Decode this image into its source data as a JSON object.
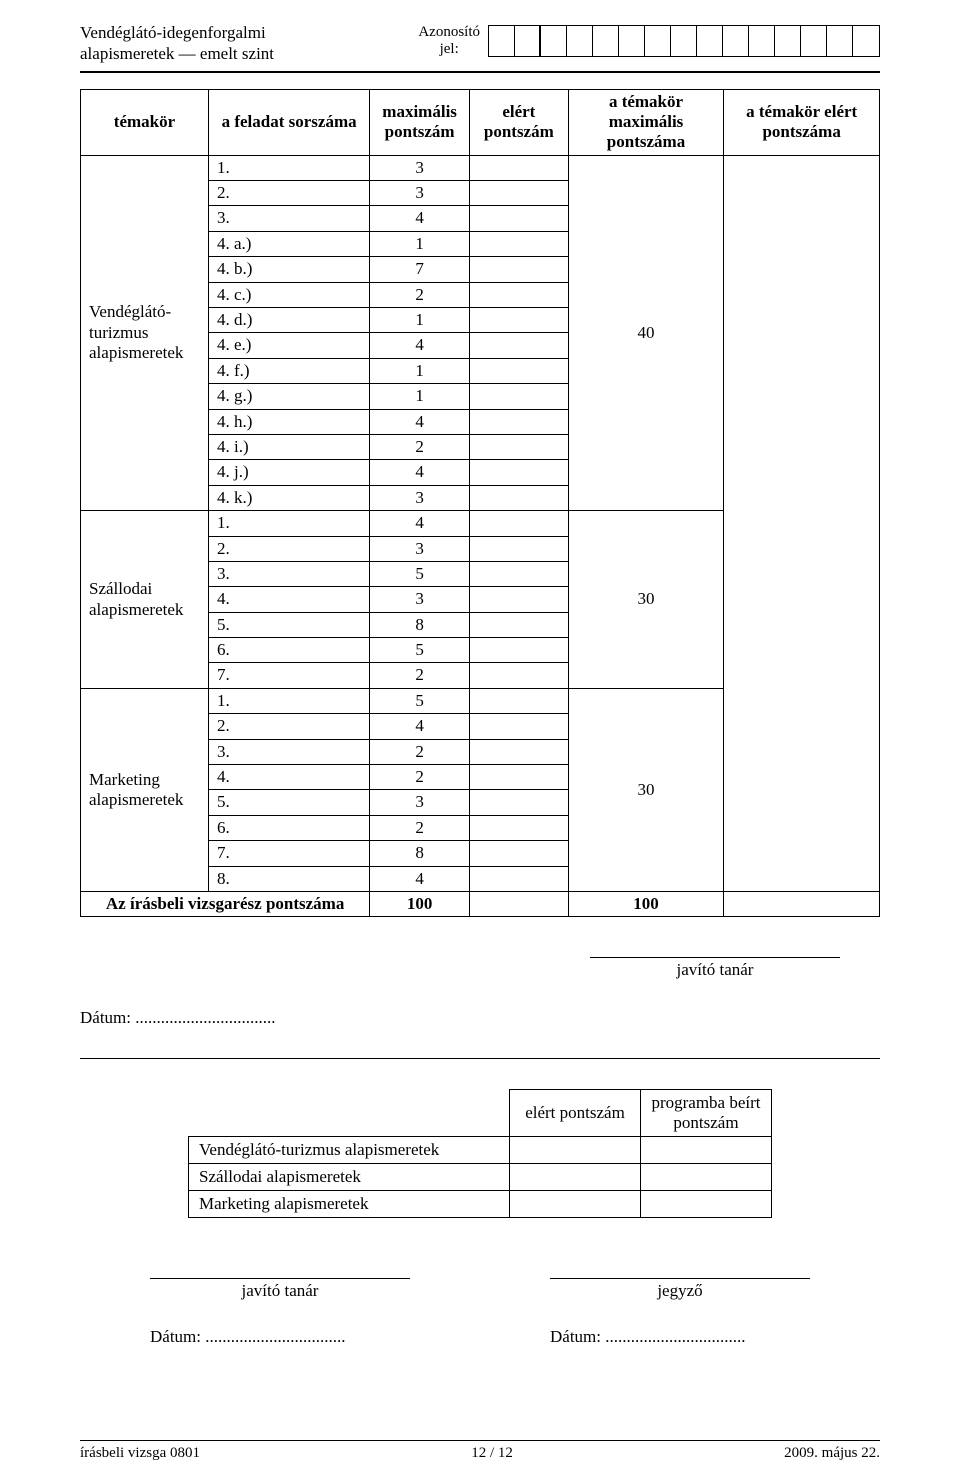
{
  "header": {
    "title_line1": "Vendéglátó-idegenforgalmi",
    "title_line2": "alapismeretek — emelt szint",
    "azonosito_line1": "Azonosító",
    "azonosito_line2": "jel:"
  },
  "table_headers": {
    "temakor": "témakör",
    "feladat": "a feladat sorszáma",
    "max": "maximális pontszám",
    "elert": "elért pontszám",
    "tmax": "a témakör maximális pontszáma",
    "telert": "a témakör elért pontszáma"
  },
  "sections": [
    {
      "name": "Vendéglátó-turizmus alapismeretek",
      "group_max": "40",
      "rows": [
        {
          "label": "1.",
          "max": "3"
        },
        {
          "label": "2.",
          "max": "3"
        },
        {
          "label": "3.",
          "max": "4"
        },
        {
          "label": "4. a.)",
          "max": "1"
        },
        {
          "label": "4. b.)",
          "max": "7"
        },
        {
          "label": "4. c.)",
          "max": "2"
        },
        {
          "label": "4. d.)",
          "max": "1"
        },
        {
          "label": "4. e.)",
          "max": "4"
        },
        {
          "label": "4. f.)",
          "max": "1"
        },
        {
          "label": "4. g.)",
          "max": "1"
        },
        {
          "label": "4. h.)",
          "max": "4"
        },
        {
          "label": "4. i.)",
          "max": "2"
        },
        {
          "label": "4. j.)",
          "max": "4"
        },
        {
          "label": "4. k.)",
          "max": "3"
        }
      ]
    },
    {
      "name": "Szállodai alapismeretek",
      "group_max": "30",
      "rows": [
        {
          "label": "1.",
          "max": "4"
        },
        {
          "label": "2.",
          "max": "3"
        },
        {
          "label": "3.",
          "max": "5"
        },
        {
          "label": "4.",
          "max": "3"
        },
        {
          "label": "5.",
          "max": "8"
        },
        {
          "label": "6.",
          "max": "5"
        },
        {
          "label": "7.",
          "max": "2"
        }
      ]
    },
    {
      "name": "Marketing alapismeretek",
      "group_max": "30",
      "rows": [
        {
          "label": "1.",
          "max": "5"
        },
        {
          "label": "2.",
          "max": "4"
        },
        {
          "label": "3.",
          "max": "2"
        },
        {
          "label": "4.",
          "max": "2"
        },
        {
          "label": "5.",
          "max": "3"
        },
        {
          "label": "6.",
          "max": "2"
        },
        {
          "label": "7.",
          "max": "8"
        },
        {
          "label": "8.",
          "max": "4"
        }
      ]
    }
  ],
  "total": {
    "label": "Az írásbeli vizsgarész pontszáma",
    "max": "100",
    "tmax": "100"
  },
  "midsig": {
    "label": "javító tanár"
  },
  "date_label": "Dátum: .................................",
  "table2": {
    "col1": "elért pontszám",
    "col2": "programba beírt pontszám",
    "rows": [
      "Vendéglátó-turizmus alapismeretek",
      "Szállodai alapismeretek",
      "Marketing alapismeretek"
    ]
  },
  "bottom": {
    "sig1": "javító tanár",
    "sig2": "jegyző",
    "date1": "Dátum: .................................",
    "date2": "Dátum: ................................."
  },
  "footer": {
    "left": "írásbeli vizsga 0801",
    "center": "12 / 12",
    "right": "2009. május 22."
  }
}
